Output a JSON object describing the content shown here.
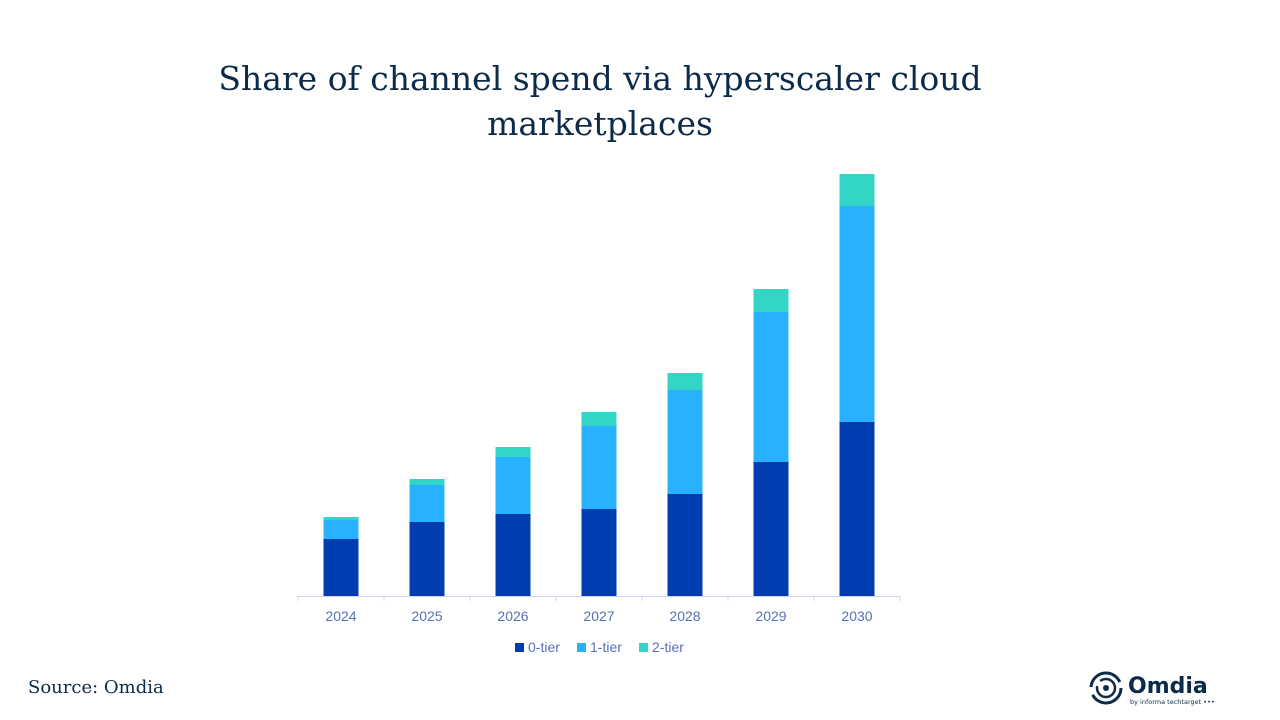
{
  "chart_data": {
    "type": "bar",
    "stacked": true,
    "title": "Share of channel spend via hyperscaler cloud marketplaces",
    "xlabel": "",
    "ylabel": "",
    "y_axis_shown": false,
    "grid": false,
    "legend_position": "bottom",
    "categories": [
      "2024",
      "2025",
      "2026",
      "2027",
      "2028",
      "2029",
      "2030"
    ],
    "series": [
      {
        "name": "0-tier",
        "color": "#003db0",
        "values": [
          5.7,
          7.4,
          8.2,
          8.7,
          10.2,
          13.4,
          17.4
        ]
      },
      {
        "name": "1-tier",
        "color": "#27b1ff",
        "values": [
          1.9,
          3.7,
          5.7,
          8.3,
          10.4,
          15.0,
          21.6
        ]
      },
      {
        "name": "2-tier",
        "color": "#33d6c6",
        "values": [
          0.3,
          0.6,
          1.0,
          1.4,
          1.7,
          2.3,
          3.2
        ]
      }
    ],
    "ylim": [
      0,
      45
    ]
  },
  "footer": {
    "source": "Source: Omdia"
  },
  "logo": {
    "brand": "Omdia",
    "tagline": "by informa techtarget"
  }
}
